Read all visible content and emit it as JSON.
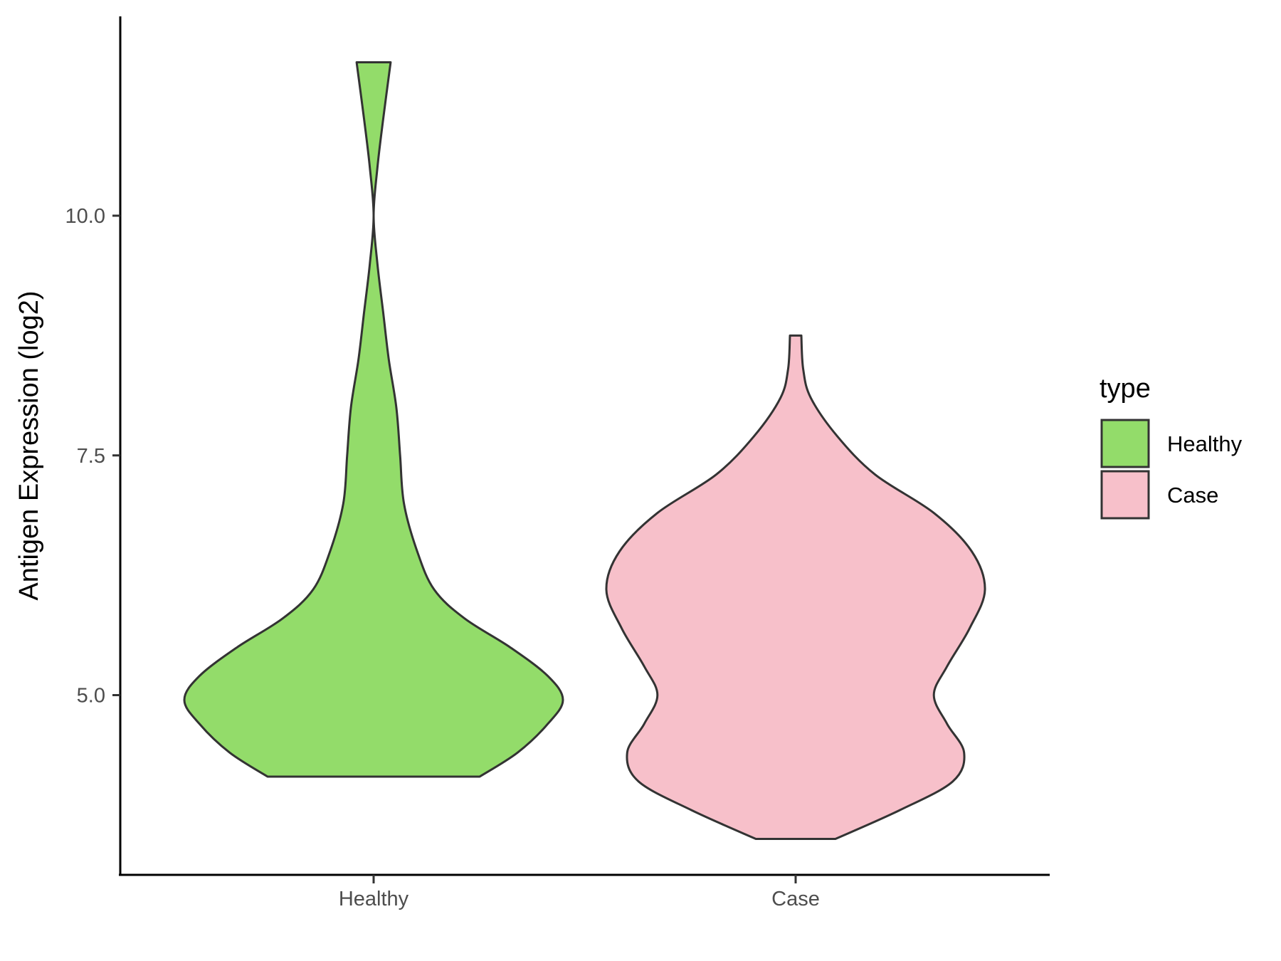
{
  "chart_data": {
    "type": "violin",
    "title": "",
    "xlabel": "",
    "ylabel": "Antigen Expression (log2)",
    "ylim": [
      3.5,
      12.5
    ],
    "y_ticks": [
      {
        "value": 5.0,
        "label": "5.0"
      },
      {
        "value": 7.5,
        "label": "7.5"
      },
      {
        "value": 10.0,
        "label": "10.0"
      }
    ],
    "categories": [
      "Healthy",
      "Case"
    ],
    "legend": {
      "title": "type",
      "position": "right",
      "entries": [
        {
          "label": "Healthy",
          "color": "#93DC6A"
        },
        {
          "label": "Case",
          "color": "#F7C0CA"
        }
      ]
    },
    "series": [
      {
        "name": "Healthy",
        "color": "#93DC6A",
        "density": [
          [
            4.15,
            0.56
          ],
          [
            4.4,
            0.76
          ],
          [
            4.7,
            0.92
          ],
          [
            4.95,
            1.0
          ],
          [
            5.2,
            0.92
          ],
          [
            5.5,
            0.72
          ],
          [
            5.8,
            0.48
          ],
          [
            6.1,
            0.32
          ],
          [
            6.5,
            0.23
          ],
          [
            7.0,
            0.16
          ],
          [
            7.5,
            0.14
          ],
          [
            8.0,
            0.12
          ],
          [
            8.5,
            0.08
          ],
          [
            9.0,
            0.05
          ],
          [
            9.5,
            0.02
          ],
          [
            10.0,
            0.0
          ],
          [
            10.5,
            0.02
          ],
          [
            11.0,
            0.05
          ],
          [
            11.6,
            0.09
          ]
        ]
      },
      {
        "name": "Case",
        "color": "#F7C0CA",
        "density": [
          [
            3.5,
            0.21
          ],
          [
            3.8,
            0.55
          ],
          [
            4.1,
            0.83
          ],
          [
            4.4,
            0.89
          ],
          [
            4.7,
            0.8
          ],
          [
            5.0,
            0.73
          ],
          [
            5.3,
            0.8
          ],
          [
            5.7,
            0.92
          ],
          [
            6.1,
            1.0
          ],
          [
            6.5,
            0.93
          ],
          [
            6.9,
            0.73
          ],
          [
            7.3,
            0.42
          ],
          [
            7.7,
            0.22
          ],
          [
            8.1,
            0.08
          ],
          [
            8.4,
            0.04
          ],
          [
            8.75,
            0.03
          ]
        ]
      }
    ],
    "grid": false
  }
}
